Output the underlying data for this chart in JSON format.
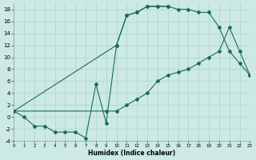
{
  "background_color": "#cce9e5",
  "grid_color": "#aad4cf",
  "line_color": "#1a6b5a",
  "xlabel": "Humidex (Indice chaleur)",
  "xlim": [
    0,
    23
  ],
  "ylim": [
    -4,
    19
  ],
  "xticks": [
    0,
    1,
    2,
    3,
    4,
    5,
    6,
    7,
    8,
    9,
    10,
    11,
    12,
    13,
    14,
    15,
    16,
    17,
    18,
    19,
    20,
    21,
    22,
    23
  ],
  "yticks": [
    -4,
    -2,
    0,
    2,
    4,
    6,
    8,
    10,
    12,
    14,
    16,
    18
  ],
  "curve1_x": [
    0,
    1,
    2,
    3,
    4,
    5,
    6,
    7,
    8,
    9,
    10,
    11,
    12,
    13,
    14,
    15
  ],
  "curve1_y": [
    1,
    0,
    -1.5,
    -1.5,
    -2.5,
    -2.5,
    -2.5,
    -3.5,
    5.5,
    -1,
    12,
    17,
    17.5,
    18.5,
    18.5,
    18.5
  ],
  "curve2_x": [
    0,
    10,
    11,
    12,
    13,
    14,
    15,
    16,
    17,
    18,
    19,
    20,
    21,
    22,
    23
  ],
  "curve2_y": [
    1,
    12,
    17,
    17.5,
    18.5,
    18.5,
    18.5,
    18,
    18,
    17.5,
    17.5,
    15,
    11,
    9,
    7
  ],
  "curve3_x": [
    0,
    9,
    10,
    11,
    12,
    13,
    14,
    15,
    16,
    17,
    18,
    19,
    20,
    21,
    22,
    23
  ],
  "curve3_y": [
    1,
    1,
    1,
    2,
    3,
    4,
    6,
    7,
    7.5,
    8,
    9,
    10,
    11,
    15,
    11,
    7
  ]
}
